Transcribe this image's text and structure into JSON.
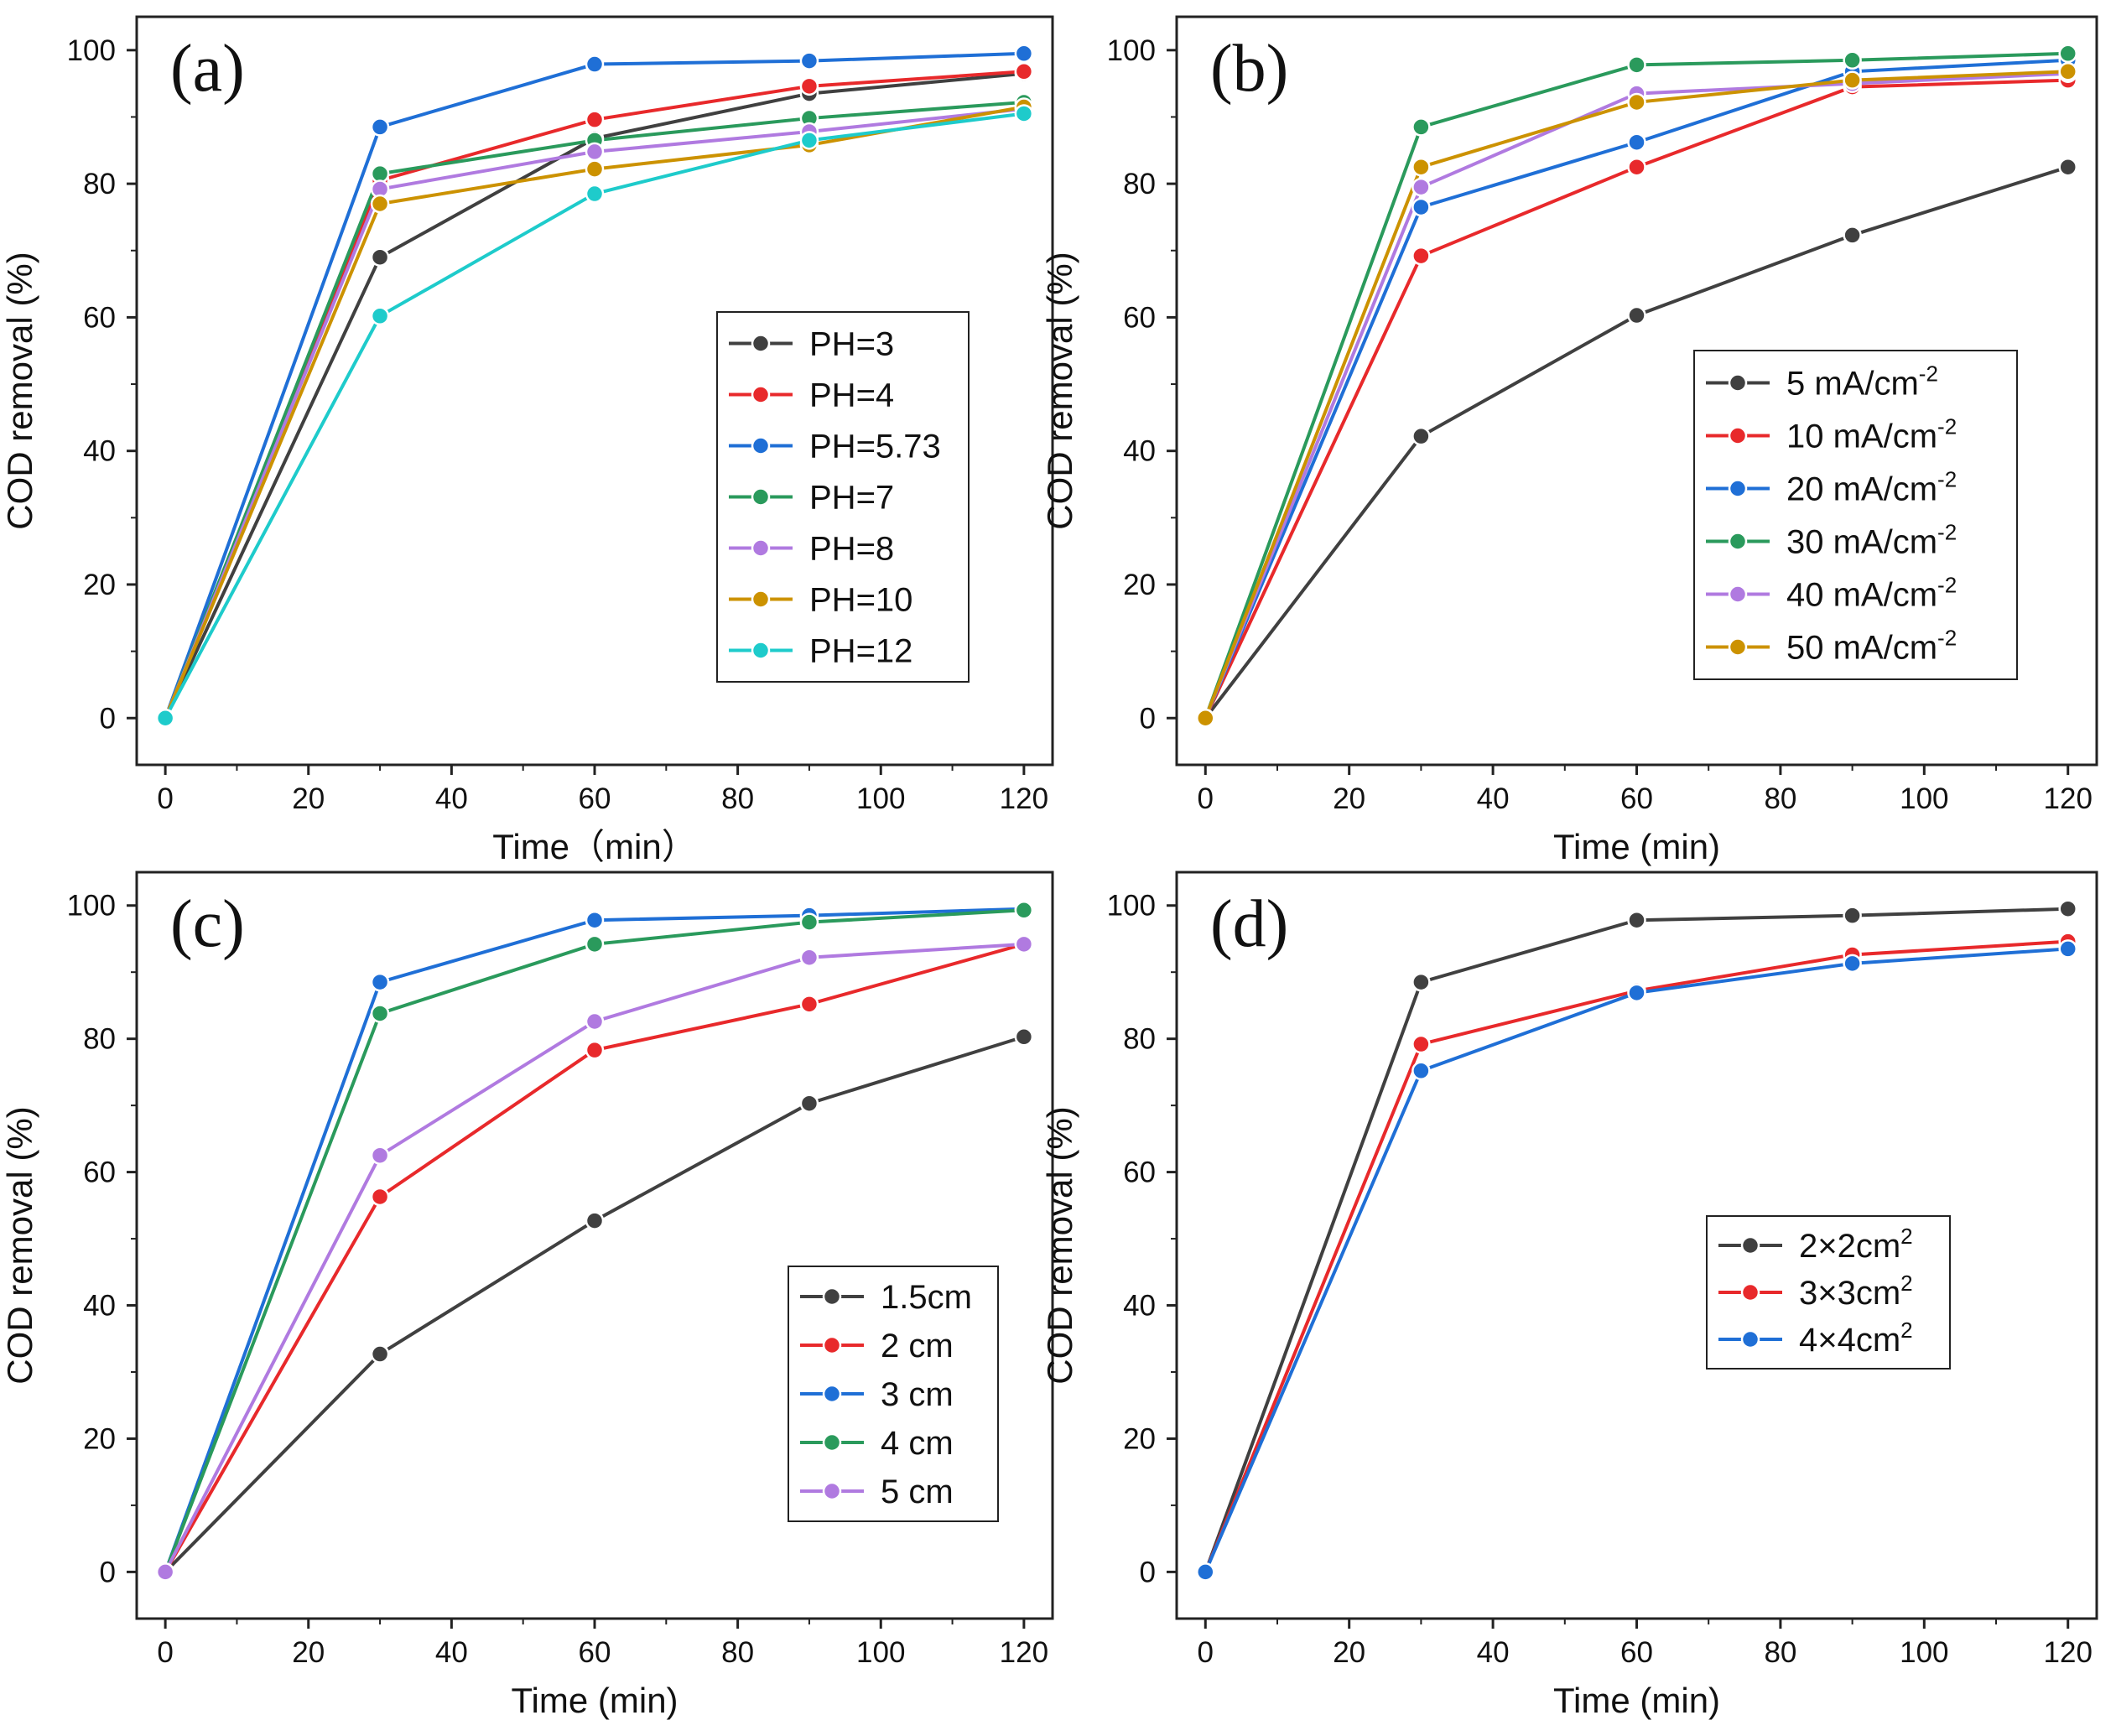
{
  "figure": {
    "description_free": true
  },
  "chart_data": [
    {
      "id": "a",
      "type": "line",
      "panel_label": "(a)",
      "xlabel": "Time（min）",
      "ylabel": "COD removal (%)",
      "xlim": [
        -4,
        124
      ],
      "ylim": [
        -7,
        105
      ],
      "xticks": [
        0,
        20,
        40,
        60,
        80,
        100,
        120
      ],
      "yticks": [
        0,
        20,
        40,
        60,
        80,
        100
      ],
      "x": [
        0,
        30,
        60,
        90,
        120
      ],
      "legend_position": "center-right",
      "series": [
        {
          "name": "PH=3",
          "color": "#404040",
          "values": [
            0,
            69.0,
            86.8,
            93.5,
            96.5
          ]
        },
        {
          "name": "PH=4",
          "color": "#e8292b",
          "values": [
            0,
            80.5,
            89.6,
            94.6,
            96.8
          ]
        },
        {
          "name": "PH=5.73",
          "color": "#1f6fd6",
          "values": [
            0,
            88.5,
            97.9,
            98.4,
            99.5
          ]
        },
        {
          "name": "PH=7",
          "color": "#2a9a5c",
          "values": [
            0,
            81.5,
            86.5,
            89.8,
            92.2
          ]
        },
        {
          "name": "PH=8",
          "color": "#b07ae0",
          "values": [
            0,
            79.2,
            84.8,
            87.8,
            91.2
          ]
        },
        {
          "name": "PH=10",
          "color": "#cc9200",
          "values": [
            0,
            77.0,
            82.2,
            85.8,
            91.5
          ]
        },
        {
          "name": "PH=12",
          "color": "#1ecbcb",
          "values": [
            0,
            60.2,
            78.5,
            86.5,
            90.5
          ]
        }
      ]
    },
    {
      "id": "b",
      "type": "line",
      "panel_label": "(b)",
      "xlabel": "Time (min)",
      "ylabel": "COD removal (%)",
      "xlim": [
        -4,
        124
      ],
      "ylim": [
        -7,
        105
      ],
      "xticks": [
        0,
        20,
        40,
        60,
        80,
        100,
        120
      ],
      "yticks": [
        0,
        20,
        40,
        60,
        80,
        100
      ],
      "x": [
        0,
        30,
        60,
        90,
        120
      ],
      "legend_position": "center-right",
      "series": [
        {
          "name": "5   mA/cm",
          "sup": "-2",
          "color": "#404040",
          "values": [
            0,
            42.2,
            60.3,
            72.3,
            82.5
          ]
        },
        {
          "name": "10 mA/cm",
          "sup": "-2",
          "color": "#e8292b",
          "values": [
            0,
            69.2,
            82.5,
            94.5,
            95.5
          ]
        },
        {
          "name": "20 mA/cm",
          "sup": "-2",
          "color": "#1f6fd6",
          "values": [
            0,
            76.5,
            86.2,
            96.8,
            98.5
          ]
        },
        {
          "name": "30 mA/cm",
          "sup": "-2",
          "color": "#2a9a5c",
          "values": [
            0,
            88.5,
            97.8,
            98.5,
            99.5
          ]
        },
        {
          "name": "40 mA/cm",
          "sup": "-2",
          "color": "#b07ae0",
          "values": [
            0,
            79.5,
            93.5,
            95.0,
            96.5
          ]
        },
        {
          "name": "50 mA/cm",
          "sup": "-2",
          "color": "#cc9200",
          "values": [
            0,
            82.5,
            92.2,
            95.5,
            96.8
          ]
        }
      ]
    },
    {
      "id": "c",
      "type": "line",
      "panel_label": "(c)",
      "xlabel": "Time (min)",
      "ylabel": "COD removal (%)",
      "xlim": [
        -4,
        124
      ],
      "ylim": [
        -7,
        105
      ],
      "xticks": [
        0,
        20,
        40,
        60,
        80,
        100,
        120
      ],
      "yticks": [
        0,
        20,
        40,
        60,
        80,
        100
      ],
      "x": [
        0,
        30,
        60,
        90,
        120
      ],
      "legend_position": "lower-right",
      "series": [
        {
          "name": "1.5cm",
          "color": "#404040",
          "values": [
            0,
            32.7,
            52.7,
            70.3,
            80.3
          ]
        },
        {
          "name": "2  cm",
          "color": "#e8292b",
          "values": [
            0,
            56.3,
            78.3,
            85.2,
            94.2
          ]
        },
        {
          "name": "3  cm",
          "color": "#1f6fd6",
          "values": [
            0,
            88.5,
            97.8,
            98.5,
            99.5
          ]
        },
        {
          "name": "4  cm",
          "color": "#2a9a5c",
          "values": [
            0,
            83.8,
            94.2,
            97.5,
            99.3
          ]
        },
        {
          "name": "5  cm",
          "color": "#b07ae0",
          "values": [
            0,
            62.5,
            82.6,
            92.2,
            94.2
          ]
        }
      ]
    },
    {
      "id": "d",
      "type": "line",
      "panel_label": "(d)",
      "xlabel": "Time (min)",
      "ylabel": "COD removal (%)",
      "xlim": [
        -4,
        124
      ],
      "ylim": [
        -7,
        105
      ],
      "xticks": [
        0,
        20,
        40,
        60,
        80,
        100,
        120
      ],
      "yticks": [
        0,
        20,
        40,
        60,
        80,
        100
      ],
      "x": [
        0,
        30,
        60,
        90,
        120
      ],
      "legend_position": "center-right",
      "series": [
        {
          "name": "2×2cm",
          "sup": "2",
          "color": "#404040",
          "values": [
            0,
            88.5,
            97.8,
            98.5,
            99.5
          ]
        },
        {
          "name": "3×3cm",
          "sup": "2",
          "color": "#e8292b",
          "values": [
            0,
            79.2,
            87.2,
            92.6,
            94.6
          ]
        },
        {
          "name": "4×4cm",
          "sup": "2",
          "color": "#1f6fd6",
          "values": [
            0,
            75.2,
            86.9,
            91.3,
            93.5
          ]
        }
      ]
    }
  ]
}
